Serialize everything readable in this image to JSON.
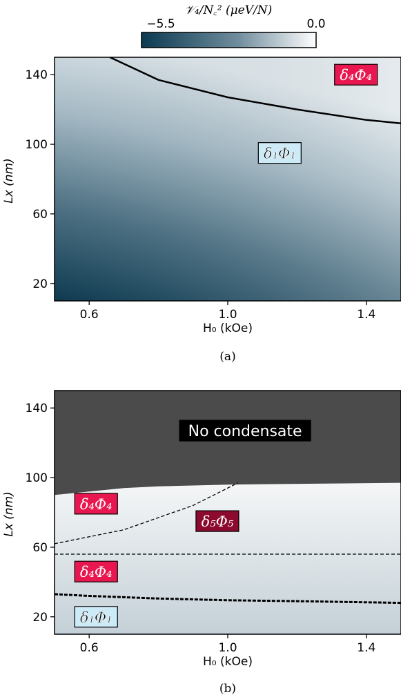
{
  "chart_data": [
    {
      "type": "heatmap",
      "panel": "(a)",
      "xlabel": "H₀ (kOe)",
      "ylabel": "Lx (nm)",
      "xlim": [
        0.5,
        1.5
      ],
      "ylim": [
        10,
        150
      ],
      "xticks": [
        "0.6",
        "1.0",
        "1.4"
      ],
      "yticks": [
        "20",
        "60",
        "100",
        "140"
      ],
      "colorbar": {
        "label": "𝒱₄/N꜀² (μeV/N)",
        "min_label": "−5.5",
        "max_label": "0.0",
        "min": -5.5,
        "max": 0.0,
        "colors": [
          "#0b3a52",
          "#ffffff"
        ],
        "placement": "top"
      },
      "boundary": {
        "style": "solid",
        "points": [
          [
            0.66,
            150
          ],
          [
            0.8,
            137
          ],
          [
            1.0,
            127
          ],
          [
            1.2,
            120
          ],
          [
            1.4,
            114
          ],
          [
            1.5,
            112
          ]
        ]
      },
      "regions": [
        {
          "label": "δ₄Φ₄",
          "x": 1.37,
          "y": 140,
          "color": "#e8174f"
        },
        {
          "label": "δ₁Φ₁",
          "x": 1.15,
          "y": 95,
          "color": "#cdeaf7"
        }
      ],
      "caption": "(a)"
    },
    {
      "type": "heatmap",
      "panel": "(b)",
      "xlabel": "H₀ (kOe)",
      "ylabel": "Lx (nm)",
      "xlim": [
        0.5,
        1.5
      ],
      "ylim": [
        10,
        150
      ],
      "xticks": [
        "0.6",
        "1.0",
        "1.4"
      ],
      "yticks": [
        "20",
        "60",
        "100",
        "140"
      ],
      "no_condensate_edge": [
        [
          0.5,
          90
        ],
        [
          0.55,
          91
        ],
        [
          0.6,
          92
        ],
        [
          0.7,
          94
        ],
        [
          0.8,
          95
        ],
        [
          1.0,
          96
        ],
        [
          1.5,
          97
        ]
      ],
      "boundaries": [
        {
          "style": "dashed",
          "points": [
            [
              0.5,
              62
            ],
            [
              0.7,
              70
            ],
            [
              0.9,
              84
            ],
            [
              1.03,
              97
            ]
          ]
        },
        {
          "style": "dashed",
          "points": [
            [
              0.5,
              56
            ],
            [
              1.5,
              56
            ]
          ]
        },
        {
          "style": "dashed-thick",
          "points": [
            [
              0.5,
              33
            ],
            [
              0.6,
              32
            ],
            [
              0.8,
              30.5
            ],
            [
              1.0,
              29.5
            ],
            [
              1.2,
              29
            ],
            [
              1.5,
              28
            ]
          ]
        }
      ],
      "regions": [
        {
          "label": "No condensate",
          "x": 1.05,
          "y": 127,
          "color": "#000000"
        },
        {
          "label": "δ₄Φ₄",
          "x": 0.62,
          "y": 85,
          "color": "#e8174f"
        },
        {
          "label": "δ₅Φ₅",
          "x": 0.97,
          "y": 75,
          "color": "#8b0a2e"
        },
        {
          "label": "δ₄Φ₄",
          "x": 0.62,
          "y": 46,
          "color": "#e8174f"
        },
        {
          "label": "δ₁Φ₁",
          "x": 0.62,
          "y": 20,
          "color": "#cdeaf7"
        }
      ],
      "caption": "(b)"
    }
  ]
}
